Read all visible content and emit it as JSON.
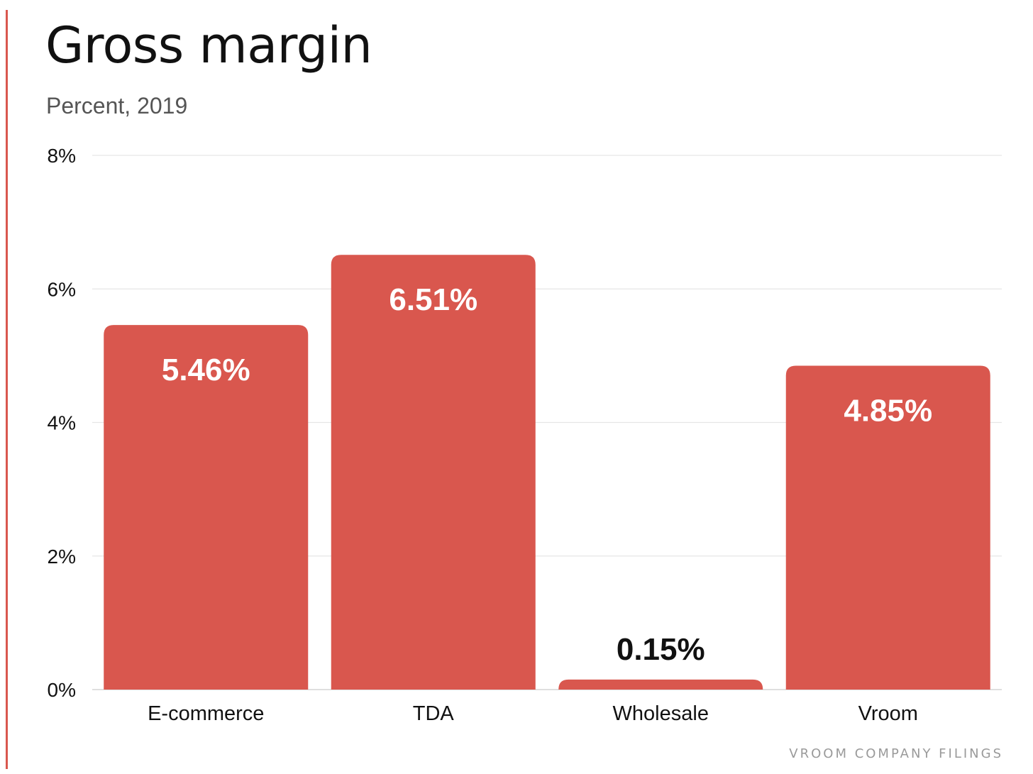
{
  "title": "Gross margin",
  "subtitle": "Percent, 2019",
  "source": "VROOM COMPANY FILINGS",
  "colors": {
    "bar": "#d9574e",
    "grid": "#e6e6e6",
    "value_inside": "#ffffff",
    "value_outside": "#111111"
  },
  "chart_data": {
    "type": "bar",
    "title": "Gross margin",
    "subtitle": "Percent, 2019",
    "categories": [
      "E-commerce",
      "TDA",
      "Wholesale",
      "Vroom"
    ],
    "values": [
      5.46,
      6.51,
      0.15,
      4.85
    ],
    "value_labels": [
      "5.46%",
      "6.51%",
      "0.15%",
      "4.85%"
    ],
    "xlabel": "",
    "ylabel": "",
    "ylim": [
      0,
      8
    ],
    "yticks": [
      0,
      2,
      4,
      6,
      8
    ],
    "ytick_labels": [
      "0%",
      "2%",
      "4%",
      "6%",
      "8%"
    ],
    "grid": true,
    "legend": false
  }
}
